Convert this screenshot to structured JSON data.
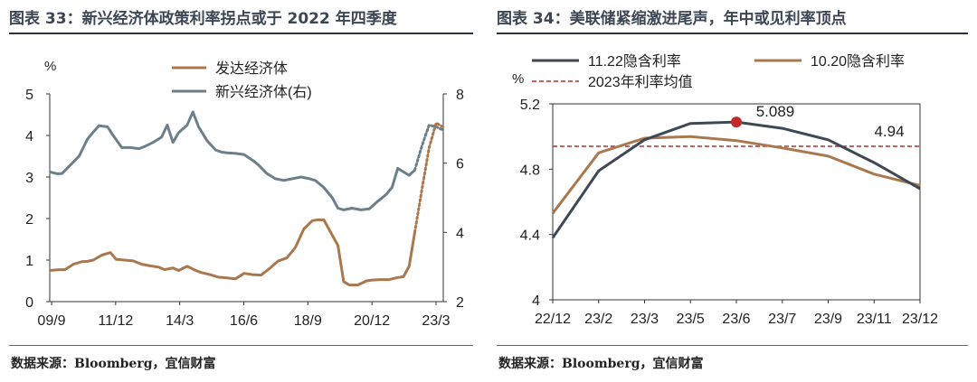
{
  "colors": {
    "brown": "#a9784f",
    "slate": "#6d7f8b",
    "dark": "#3f4955",
    "red": "#c0282a"
  },
  "left": {
    "title": "图表 33：新兴经济体政策利率拐点或于 2022 年四季度",
    "source": "数据来源：Bloomberg，宜信财富",
    "chart_data": {
      "type": "line",
      "unit": "%",
      "x_ticks": [
        "09/9",
        "11/12",
        "14/3",
        "16/6",
        "18/9",
        "20/12",
        "23/3"
      ],
      "x_range": [
        2009.67,
        2023.5
      ],
      "left_axis": {
        "min": 0,
        "max": 5,
        "ticks": [
          0,
          1,
          2,
          3,
          4,
          5
        ]
      },
      "right_axis": {
        "min": 2,
        "max": 8,
        "ticks": [
          2,
          4,
          6,
          8
        ]
      },
      "legend": [
        "发达经济体",
        "新兴经济体(右)"
      ],
      "series": [
        {
          "name": "发达经济体",
          "axis": "left",
          "x": [
            2009.67,
            2010.0,
            2010.2,
            2010.5,
            2010.8,
            2011.0,
            2011.2,
            2011.5,
            2011.8,
            2012.0,
            2012.3,
            2012.6,
            2012.9,
            2013.2,
            2013.5,
            2013.7,
            2014.0,
            2014.2,
            2014.5,
            2014.8,
            2015.0,
            2015.3,
            2015.6,
            2015.9,
            2016.2,
            2016.5,
            2016.8,
            2017.1,
            2017.4,
            2017.7,
            2018.0,
            2018.3,
            2018.6,
            2018.9,
            2019.1,
            2019.3,
            2019.6,
            2019.8,
            2020.0,
            2020.2,
            2020.5,
            2020.8,
            2021.0,
            2021.3,
            2021.6,
            2021.9,
            2022.1,
            2022.3,
            2022.5
          ],
          "y": [
            0.75,
            0.77,
            0.77,
            0.9,
            0.96,
            0.97,
            1.0,
            1.12,
            1.18,
            1.02,
            1.0,
            0.98,
            0.9,
            0.86,
            0.83,
            0.77,
            0.81,
            0.75,
            0.85,
            0.75,
            0.7,
            0.65,
            0.59,
            0.57,
            0.55,
            0.68,
            0.65,
            0.64,
            0.8,
            0.98,
            1.05,
            1.3,
            1.75,
            1.95,
            1.97,
            1.97,
            1.6,
            1.35,
            0.48,
            0.4,
            0.4,
            0.5,
            0.52,
            0.53,
            0.53,
            0.58,
            0.6,
            0.85,
            1.67
          ]
        },
        {
          "name": "新兴经济体(右)",
          "axis": "right",
          "x": [
            2009.67,
            2009.9,
            2010.1,
            2010.4,
            2010.7,
            2011.0,
            2011.2,
            2011.4,
            2011.7,
            2011.9,
            2012.2,
            2012.5,
            2012.8,
            2013.0,
            2013.3,
            2013.6,
            2013.8,
            2014.0,
            2014.2,
            2014.5,
            2014.7,
            2014.9,
            2015.2,
            2015.5,
            2015.7,
            2015.9,
            2016.2,
            2016.5,
            2016.8,
            2017.0,
            2017.3,
            2017.6,
            2017.9,
            2018.2,
            2018.5,
            2018.8,
            2019.0,
            2019.3,
            2019.6,
            2019.8,
            2020.0,
            2020.3,
            2020.6,
            2020.9,
            2021.2,
            2021.5,
            2021.7,
            2021.9,
            2022.1,
            2022.3,
            2022.5
          ],
          "y": [
            5.75,
            5.7,
            5.7,
            5.95,
            6.2,
            6.7,
            6.9,
            7.08,
            7.05,
            6.8,
            6.45,
            6.45,
            6.42,
            6.48,
            6.6,
            6.75,
            7.1,
            6.6,
            6.88,
            7.1,
            7.48,
            7.05,
            6.65,
            6.38,
            6.32,
            6.3,
            6.28,
            6.25,
            6.08,
            5.95,
            5.7,
            5.55,
            5.5,
            5.55,
            5.6,
            5.55,
            5.5,
            5.3,
            5.0,
            4.7,
            4.65,
            4.7,
            4.65,
            4.68,
            4.9,
            5.1,
            5.3,
            5.85,
            5.75,
            5.65,
            5.8
          ]
        }
      ],
      "forecast": [
        {
          "series": "发达经济体",
          "axis": "left",
          "x": [
            2022.5,
            2022.75,
            2023.0,
            2023.25,
            2023.5
          ],
          "y": [
            1.67,
            2.7,
            3.7,
            4.3,
            4.2
          ]
        },
        {
          "series": "新兴经济体(右)",
          "axis": "right",
          "x": [
            2022.5,
            2022.75,
            2023.0,
            2023.25,
            2023.5
          ],
          "y": [
            5.8,
            6.5,
            7.1,
            7.05,
            6.95
          ]
        }
      ]
    }
  },
  "right": {
    "title": "图表 34：美联储紧缩激进尾声，年中或见利率顶点",
    "source": "数据来源：Bloomberg，宜信财富",
    "chart_data": {
      "type": "line",
      "unit": "%",
      "categories": [
        "22/12",
        "23/2",
        "23/3",
        "23/5",
        "23/6",
        "23/7",
        "23/9",
        "23/11",
        "23/12"
      ],
      "y_axis": {
        "min": 4,
        "max": 5.2,
        "ticks": [
          4,
          4.4,
          4.8,
          5.2
        ]
      },
      "legend": [
        "11.22隐含利率",
        "10.20隐含利率",
        "2023年利率均值"
      ],
      "series": [
        {
          "name": "11.22隐含利率",
          "values": [
            4.38,
            4.79,
            4.98,
            5.08,
            5.089,
            5.05,
            4.98,
            4.84,
            4.68
          ]
        },
        {
          "name": "10.20隐含利率",
          "values": [
            4.53,
            4.9,
            4.99,
            5.0,
            4.975,
            4.93,
            4.88,
            4.77,
            4.7
          ]
        }
      ],
      "reference_line": {
        "name": "2023年利率均值",
        "value": 4.94,
        "label": "4.94"
      },
      "peak_annotation": {
        "category": "23/6",
        "value": 5.089,
        "label": "5.089"
      }
    }
  }
}
